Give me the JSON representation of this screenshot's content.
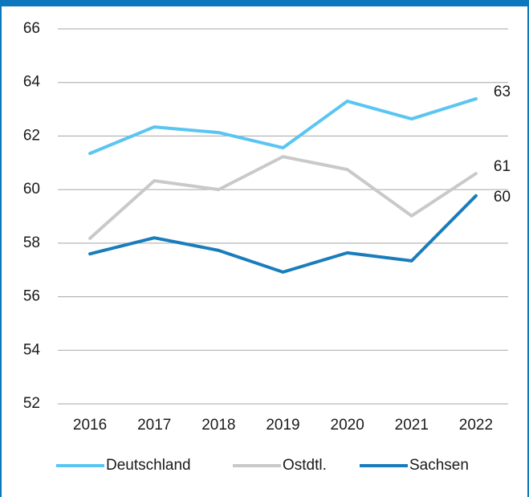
{
  "chart_data": {
    "type": "line",
    "categories": [
      "2016",
      "2017",
      "2018",
      "2019",
      "2020",
      "2021",
      "2022"
    ],
    "series": [
      {
        "name": "Deutschland",
        "color": "#5bc5f2",
        "values": [
          61.35,
          62.34,
          62.13,
          61.56,
          63.3,
          62.64,
          63.39
        ],
        "value_labels": [
          null,
          null,
          null,
          null,
          null,
          null,
          "63"
        ]
      },
      {
        "name": "Ostdtl.",
        "color": "#c9c9c9",
        "values": [
          58.18,
          60.33,
          60.0,
          61.23,
          60.75,
          59.02,
          60.6
        ],
        "value_labels": [
          null,
          null,
          null,
          null,
          null,
          null,
          "61"
        ]
      },
      {
        "name": "Sachsen",
        "color": "#1a7dbb",
        "values": [
          57.6,
          58.2,
          57.73,
          56.92,
          57.64,
          57.34,
          59.77
        ],
        "value_labels": [
          null,
          null,
          null,
          null,
          null,
          null,
          "60"
        ]
      }
    ],
    "ylim": [
      52,
      66
    ],
    "yticks": [
      52,
      54,
      56,
      58,
      60,
      62,
      64,
      66
    ],
    "grid": true,
    "legend": "bottom"
  }
}
